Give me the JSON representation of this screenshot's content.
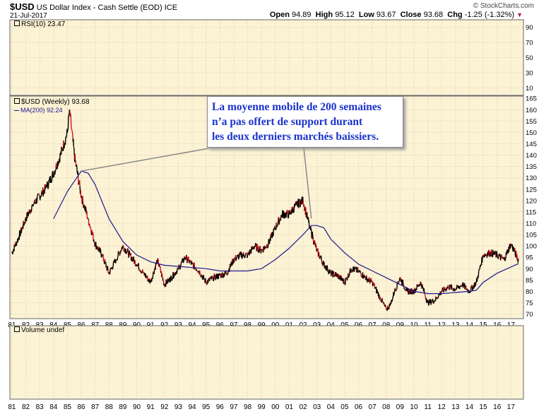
{
  "header": {
    "symbol": "$USD",
    "name": "US Dollar Index - Cash Settle (EOD)",
    "exchange": "ICE",
    "date": "21-Jul-2017",
    "open_label": "Open",
    "open": "94.89",
    "high_label": "High",
    "high": "95.12",
    "low_label": "Low",
    "low": "93.67",
    "close_label": "Close",
    "close": "93.68",
    "chg_label": "Chg",
    "chg": "-1.25 (-1.32%)",
    "watermark": "© StockCharts.com"
  },
  "panels": {
    "rsi_label": "RSI(10) 23.47",
    "price_label": "$USD (Weekly) 93.68",
    "ma_label": "MA(200) 92.24",
    "volume_label": "Volume undef"
  },
  "annotation": {
    "lines": [
      "La moyenne mobile de 200 semaines",
      "n’a pas offert de support durant",
      "les deux derniers marchés baissiers."
    ]
  },
  "colors": {
    "panel_bg": "#fcf2d4",
    "price_line": "#000000",
    "down_segments": "#d0101a",
    "ma_line": "#1a1a8c",
    "rsi_line": "#000000",
    "grid": "#d9ccb0",
    "annotation_text": "#1a33cc"
  },
  "chart_data": [
    {
      "type": "line",
      "title": "RSI(10)",
      "y_ticks": [
        10,
        30,
        50,
        70,
        90
      ],
      "ylim": [
        0,
        100
      ],
      "series": [
        {
          "name": "RSI(10)",
          "last": 23.47
        }
      ]
    },
    {
      "type": "line",
      "title": "$USD (Weekly)",
      "x_ticks": [
        "81",
        "82",
        "83",
        "84",
        "85",
        "86",
        "87",
        "88",
        "89",
        "90",
        "91",
        "92",
        "93",
        "94",
        "95",
        "96",
        "97",
        "98",
        "99",
        "00",
        "01",
        "02",
        "03",
        "04",
        "05",
        "06",
        "07",
        "08",
        "09",
        "10",
        "11",
        "12",
        "13",
        "14",
        "15",
        "16",
        "17"
      ],
      "y_ticks": [
        70,
        75,
        80,
        85,
        90,
        95,
        100,
        105,
        110,
        115,
        120,
        125,
        130,
        135,
        140,
        145,
        150,
        155,
        160,
        165
      ],
      "ylim": [
        68,
        166
      ],
      "series": [
        {
          "name": "$USD (Weekly)",
          "x": [
            1981.0,
            1981.5,
            1982.0,
            1982.5,
            1983.0,
            1983.5,
            1984.0,
            1984.5,
            1985.0,
            1985.15,
            1985.5,
            1986.0,
            1986.5,
            1987.0,
            1987.5,
            1988.0,
            1988.5,
            1989.0,
            1989.5,
            1990.0,
            1990.5,
            1991.0,
            1991.5,
            1992.0,
            1992.5,
            1993.0,
            1993.5,
            1994.0,
            1994.5,
            1995.0,
            1995.5,
            1996.0,
            1996.5,
            1997.0,
            1997.5,
            1998.0,
            1998.5,
            1999.0,
            1999.5,
            2000.0,
            2000.5,
            2001.0,
            2001.5,
            2002.0,
            2002.5,
            2003.0,
            2003.5,
            2004.0,
            2004.5,
            2005.0,
            2005.5,
            2006.0,
            2006.5,
            2007.0,
            2007.5,
            2008.0,
            2008.3,
            2008.6,
            2009.0,
            2009.5,
            2010.0,
            2010.5,
            2011.0,
            2011.5,
            2012.0,
            2012.5,
            2013.0,
            2013.5,
            2014.0,
            2014.5,
            2015.0,
            2015.5,
            2016.0,
            2016.5,
            2017.0,
            2017.55
          ],
          "y": [
            97,
            104,
            112,
            118,
            122,
            126,
            132,
            140,
            150,
            160,
            140,
            122,
            112,
            101,
            96,
            88,
            94,
            100,
            96,
            92,
            88,
            84,
            94,
            83,
            86,
            90,
            95,
            92,
            89,
            84,
            86,
            87,
            88,
            94,
            96,
            96,
            100,
            98,
            101,
            108,
            114,
            114,
            118,
            120,
            108,
            98,
            92,
            88,
            87,
            84,
            90,
            89,
            86,
            84,
            78,
            72,
            74,
            80,
            86,
            80,
            80,
            84,
            75,
            76,
            80,
            82,
            81,
            83,
            80,
            84,
            96,
            97,
            96,
            94,
            101,
            93.68
          ]
        },
        {
          "name": "MA(200)",
          "last": 92.24,
          "x": [
            1984.0,
            1985.0,
            1986.0,
            1986.5,
            1987.0,
            1988.0,
            1989.0,
            1990.0,
            1991.0,
            1992.0,
            1993.0,
            1994.0,
            1995.0,
            1996.0,
            1997.0,
            1998.0,
            1999.0,
            2000.0,
            2001.0,
            2002.0,
            2002.6,
            2003.0,
            2003.5,
            2004.0,
            2005.0,
            2006.0,
            2007.0,
            2008.0,
            2009.0,
            2010.0,
            2011.0,
            2012.0,
            2013.0,
            2014.0,
            2014.5,
            2015.0,
            2016.0,
            2017.55
          ],
          "y": [
            112,
            124,
            133,
            132,
            127,
            112,
            102,
            96,
            93,
            91.5,
            91,
            90.5,
            90,
            89,
            89,
            89,
            90,
            94,
            99,
            105,
            109,
            109,
            108,
            103,
            97,
            92,
            89,
            86,
            83,
            80,
            79,
            79,
            79.5,
            80,
            80.5,
            84,
            88,
            92.24
          ]
        }
      ]
    },
    {
      "type": "bar",
      "title": "Volume",
      "series": [
        {
          "name": "Volume",
          "values": []
        }
      ]
    }
  ]
}
